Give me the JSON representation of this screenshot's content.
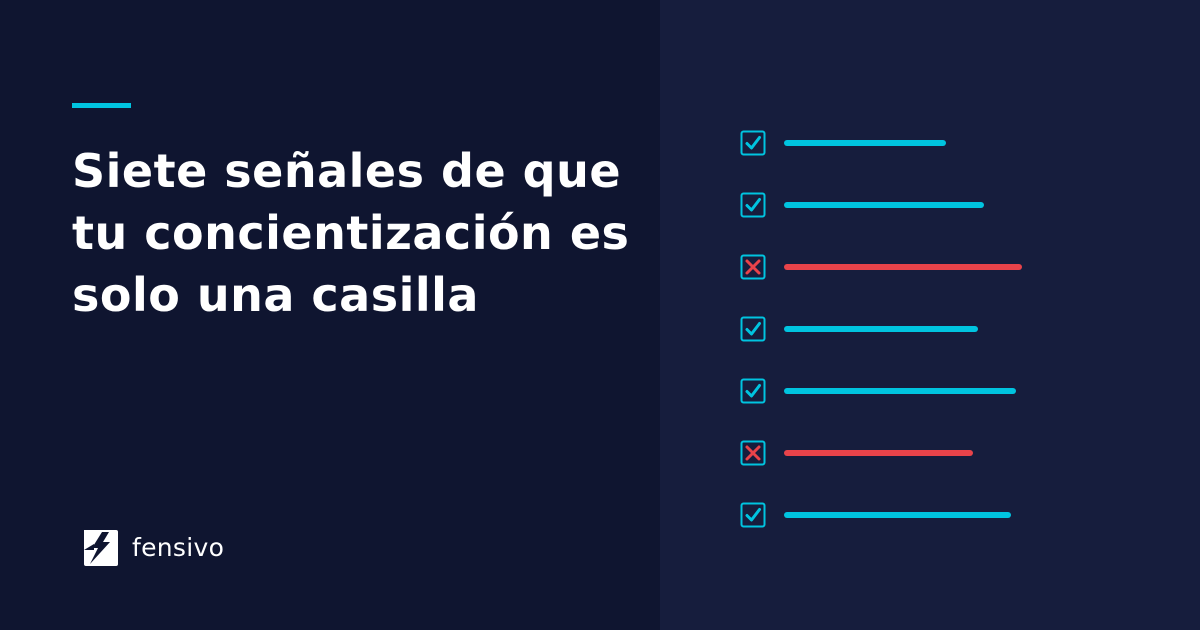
{
  "headline": "Siete señales de que tu concientización es solo una casilla",
  "brand": {
    "name": "fensivo",
    "logo_icon": "fensivo-logo-mark"
  },
  "colors": {
    "background_left": "#0f1530",
    "background_right": "#161d3d",
    "accent": "#00c4e0",
    "fail": "#e8434a",
    "text": "#ffffff"
  },
  "checklist": [
    {
      "status": "checked",
      "icon": "checkmark-icon",
      "fill": 0.6
    },
    {
      "status": "checked",
      "icon": "checkmark-icon",
      "fill": 0.74
    },
    {
      "status": "failed",
      "icon": "cross-icon",
      "fill": 0.88
    },
    {
      "status": "checked",
      "icon": "checkmark-icon",
      "fill": 0.72
    },
    {
      "status": "checked",
      "icon": "checkmark-icon",
      "fill": 0.86
    },
    {
      "status": "failed",
      "icon": "cross-icon",
      "fill": 0.7
    },
    {
      "status": "checked",
      "icon": "checkmark-icon",
      "fill": 0.84
    }
  ]
}
